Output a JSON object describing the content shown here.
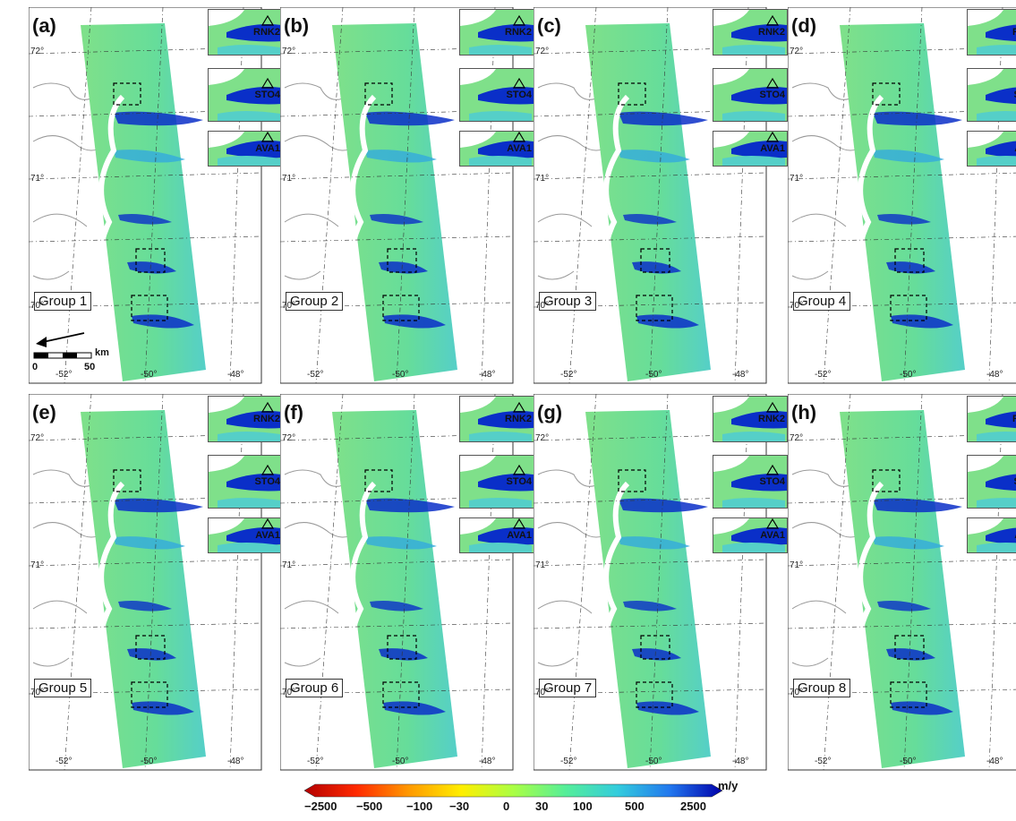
{
  "panels": [
    {
      "id": "a",
      "letter": "(a)",
      "group": "Group 1"
    },
    {
      "id": "b",
      "letter": "(b)",
      "group": "Group 2"
    },
    {
      "id": "c",
      "letter": "(c)",
      "group": "Group 3"
    },
    {
      "id": "d",
      "letter": "(d)",
      "group": "Group 4"
    },
    {
      "id": "e",
      "letter": "(e)",
      "group": "Group 5"
    },
    {
      "id": "f",
      "letter": "(f)",
      "group": "Group 6"
    },
    {
      "id": "g",
      "letter": "(g)",
      "group": "Group 7"
    },
    {
      "id": "h",
      "letter": "(h)",
      "group": "Group 8"
    }
  ],
  "lat_labels": [
    "72°",
    "71°",
    "70°"
  ],
  "lon_labels": [
    "-52°",
    "-50°",
    "-48°"
  ],
  "insets": [
    "RNK2",
    "STO4",
    "AVA1"
  ],
  "scalebar": {
    "start": "0",
    "end": "50",
    "unit": "km"
  },
  "colorbar": {
    "unit": "m/y",
    "ticks": [
      "−2500",
      "−500",
      "−100",
      "−30",
      "0",
      "30",
      "100",
      "500",
      "2500"
    ],
    "colors": [
      "#b30000",
      "#ff2a00",
      "#ff9900",
      "#ffee00",
      "#aaff44",
      "#55ee99",
      "#33ccdd",
      "#2277ee",
      "#0000aa"
    ]
  },
  "map_colors": {
    "surface": "#7fe08a",
    "fast": "#0a2fc8",
    "mid": "#33aadd",
    "coast": "#999999"
  }
}
